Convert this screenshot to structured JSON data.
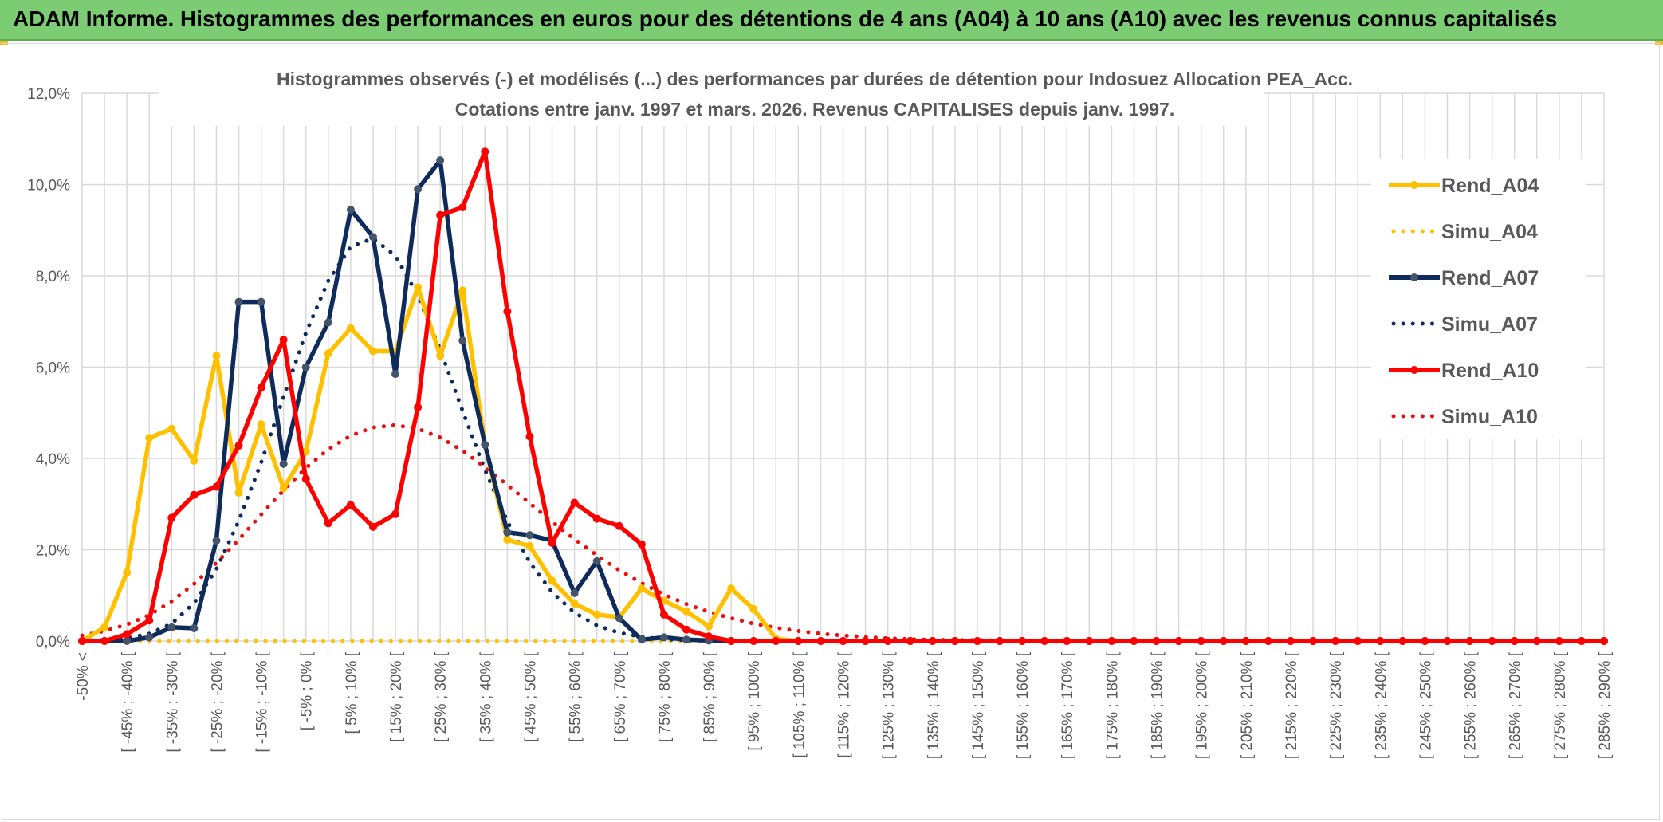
{
  "banner": {
    "title": "ADAM Informe. Histogrammes des performances en euros pour des détentions de 4 ans (A04) à 10 ans (A10) avec les revenus connus capitalisés"
  },
  "chart_data": {
    "type": "line",
    "title": "Histogrammes observés (-) et modélisés (...) des performances par durées de détention pour Indosuez Allocation PEA_Acc.",
    "subtitle": "Cotations entre janv. 1997 et mars. 2026. Revenus CAPITALISES depuis janv. 1997.",
    "xlabel": "",
    "ylabel": "",
    "ylim": [
      0,
      0.12
    ],
    "yticks": [
      "0,0%",
      "2,0%",
      "4,0%",
      "6,0%",
      "8,0%",
      "10,0%",
      "12,0%"
    ],
    "grid": true,
    "legend_position": "right",
    "x": [
      -50,
      -45,
      -40,
      -35,
      -30,
      -25,
      -20,
      -15,
      -10,
      -5,
      0,
      5,
      10,
      15,
      20,
      25,
      30,
      35,
      40,
      45,
      50,
      55,
      60,
      65,
      70,
      75,
      80,
      85,
      90,
      95,
      100,
      105,
      110,
      115,
      120,
      125,
      130,
      135,
      140,
      145,
      150,
      155,
      160,
      165,
      170,
      175,
      180,
      185,
      190,
      195,
      200,
      205,
      210,
      215,
      220,
      225,
      230,
      235,
      240,
      245,
      250,
      255,
      260,
      265,
      270,
      275,
      280,
      285,
      290
    ],
    "category_labels": [
      "-50% <",
      "",
      "[ -45% ; -40% [",
      "",
      "[ -35% ; -30% [",
      "",
      "[ -25% ; -20% [",
      "",
      "[ -15% ; -10% [",
      "",
      "[ -5% ; 0% [",
      "",
      "[ 5% ; 10% [",
      "",
      "[ 15% ; 20% [",
      "",
      "[ 25% ; 30% [",
      "",
      "[ 35% ; 40% [",
      "",
      "[ 45% ; 50% [",
      "",
      "[ 55% ; 60% [",
      "",
      "[ 65% ; 70% [",
      "",
      "[ 75% ; 80% [",
      "",
      "[ 85% ; 90% [",
      "",
      "[ 95% ; 100% [",
      "",
      "[ 105% ; 110% [",
      "",
      "[ 115% ; 120% [",
      "",
      "[ 125% ; 130% [",
      "",
      "[ 135% ; 140% [",
      "",
      "[ 145% ; 150% [",
      "",
      "[ 155% ; 160% [",
      "",
      "[ 165% ; 170% [",
      "",
      "[ 175% ; 180% [",
      "",
      "[ 185% ; 190% [",
      "",
      "[ 195% ; 200% [",
      "",
      "[ 205% ; 210% [",
      "",
      "[ 215% ; 220% [",
      "",
      "[ 225% ; 230% [",
      "",
      "[ 235% ; 240% [",
      "",
      "[ 245% ; 250% [",
      "",
      "[ 255% ; 260% [",
      "",
      "[ 265% ; 270% [",
      "",
      "[ 275% ; 280% [",
      "",
      "[ 285% ; 290% ["
    ],
    "series": [
      {
        "name": "Rend_A04",
        "style": "solid",
        "color": "#ffc000",
        "values": [
          0,
          0.003,
          0.015,
          0.0445,
          0.0465,
          0.0395,
          0.0625,
          0.0325,
          0.0475,
          0.0335,
          0.0415,
          0.063,
          0.0685,
          0.0635,
          0.0635,
          0.0775,
          0.0625,
          0.0768,
          0.043,
          0.0222,
          0.0208,
          0.0132,
          0.0082,
          0.0058,
          0.0052,
          0.0115,
          0.0088,
          0.0065,
          0.0032,
          0.0115,
          0.007,
          0.0005,
          0,
          0,
          0,
          0,
          0,
          0,
          0,
          0,
          0,
          0,
          0,
          0,
          0,
          0,
          0,
          0,
          0,
          0,
          0,
          0,
          0,
          0,
          0,
          0,
          0,
          0,
          0,
          0,
          0,
          0,
          0,
          0,
          0,
          0,
          0,
          0,
          0
        ]
      },
      {
        "name": "Simu_A04",
        "style": "dotted",
        "color": "#ffc000",
        "values": [
          0,
          0,
          0,
          0,
          0,
          0,
          0,
          0,
          0,
          0,
          0,
          0,
          0,
          0,
          0,
          0,
          0,
          0,
          0,
          0,
          0,
          0,
          0,
          0,
          0,
          0,
          0,
          0,
          0,
          0,
          0,
          0,
          0,
          0,
          0,
          0,
          0,
          0,
          0,
          0,
          0,
          0,
          0,
          0,
          0,
          0,
          0,
          0,
          0,
          0,
          0,
          0,
          0,
          0,
          0,
          0,
          0,
          0,
          0,
          0,
          0,
          0,
          0,
          0,
          0,
          0,
          0,
          0,
          0
        ]
      },
      {
        "name": "Rend_A07",
        "style": "solid",
        "color": "#0f2b5b",
        "values": [
          0,
          0,
          0,
          0.0008,
          0.003,
          0.0028,
          0.022,
          0.0743,
          0.0743,
          0.0388,
          0.06,
          0.0698,
          0.0945,
          0.0885,
          0.0585,
          0.099,
          0.1053,
          0.0658,
          0.043,
          0.0238,
          0.0232,
          0.022,
          0.0105,
          0.0175,
          0.005,
          0.0003,
          0.0008,
          0.0003,
          0.0001,
          0,
          0,
          0,
          0,
          0,
          0,
          0,
          0,
          0,
          0,
          0,
          0,
          0,
          0,
          0,
          0,
          0,
          0,
          0,
          0,
          0,
          0,
          0,
          0,
          0,
          0,
          0,
          0,
          0,
          0,
          0,
          0,
          0,
          0,
          0,
          0,
          0,
          0,
          0,
          0
        ]
      },
      {
        "name": "Simu_A07",
        "style": "dotted",
        "color": "#0f2b5b",
        "values": [
          0.0001,
          0.0002,
          0.0006,
          0.0016,
          0.0038,
          0.0083,
          0.0157,
          0.0263,
          0.0391,
          0.0535,
          0.0675,
          0.0789,
          0.0864,
          0.0882,
          0.0844,
          0.0757,
          0.0638,
          0.0504,
          0.0375,
          0.0262,
          0.0172,
          0.0107,
          0.0062,
          0.0034,
          0.0018,
          0.0009,
          0.0004,
          0.0002,
          0.0001,
          0,
          0,
          0,
          0,
          0,
          0,
          0,
          0,
          0,
          0,
          0,
          0,
          0,
          0,
          0,
          0,
          0,
          0,
          0,
          0,
          0,
          0,
          0,
          0,
          0,
          0,
          0,
          0,
          0,
          0,
          0,
          0,
          0,
          0,
          0,
          0,
          0,
          0,
          0,
          0
        ]
      },
      {
        "name": "Rend_A10",
        "style": "solid",
        "color": "#ff0000",
        "values": [
          0,
          0,
          0.0015,
          0.0045,
          0.027,
          0.032,
          0.0338,
          0.0428,
          0.0555,
          0.066,
          0.0355,
          0.0258,
          0.0298,
          0.025,
          0.0278,
          0.0512,
          0.0933,
          0.095,
          0.1072,
          0.0722,
          0.0448,
          0.0215,
          0.0303,
          0.0268,
          0.0252,
          0.0212,
          0.0058,
          0.0025,
          0.001,
          0,
          0,
          0,
          0,
          0,
          0,
          0,
          0,
          0,
          0,
          0,
          0,
          0,
          0,
          0,
          0,
          0,
          0,
          0,
          0,
          0,
          0,
          0,
          0,
          0,
          0,
          0,
          0,
          0,
          0,
          0,
          0,
          0,
          0,
          0,
          0,
          0,
          0,
          0,
          0
        ]
      },
      {
        "name": "Simu_A10",
        "style": "dotted",
        "color": "#e81010",
        "values": [
          0.0012,
          0.0022,
          0.0036,
          0.0057,
          0.0087,
          0.0125,
          0.0171,
          0.0222,
          0.0277,
          0.033,
          0.0379,
          0.042,
          0.045,
          0.0468,
          0.0473,
          0.0465,
          0.0446,
          0.0417,
          0.0381,
          0.0342,
          0.0302,
          0.0261,
          0.0223,
          0.0188,
          0.0155,
          0.0127,
          0.0102,
          0.0081,
          0.0064,
          0.005,
          0.0038,
          0.0029,
          0.0022,
          0.0016,
          0.0012,
          0.0009,
          0.0006,
          0.0004,
          0.0003,
          0.0002,
          0.0002,
          0.0001,
          0.0001,
          0.0001,
          0,
          0,
          0,
          0,
          0,
          0,
          0,
          0,
          0,
          0,
          0,
          0,
          0,
          0,
          0,
          0,
          0,
          0,
          0,
          0,
          0,
          0,
          0,
          0,
          0
        ]
      }
    ]
  }
}
